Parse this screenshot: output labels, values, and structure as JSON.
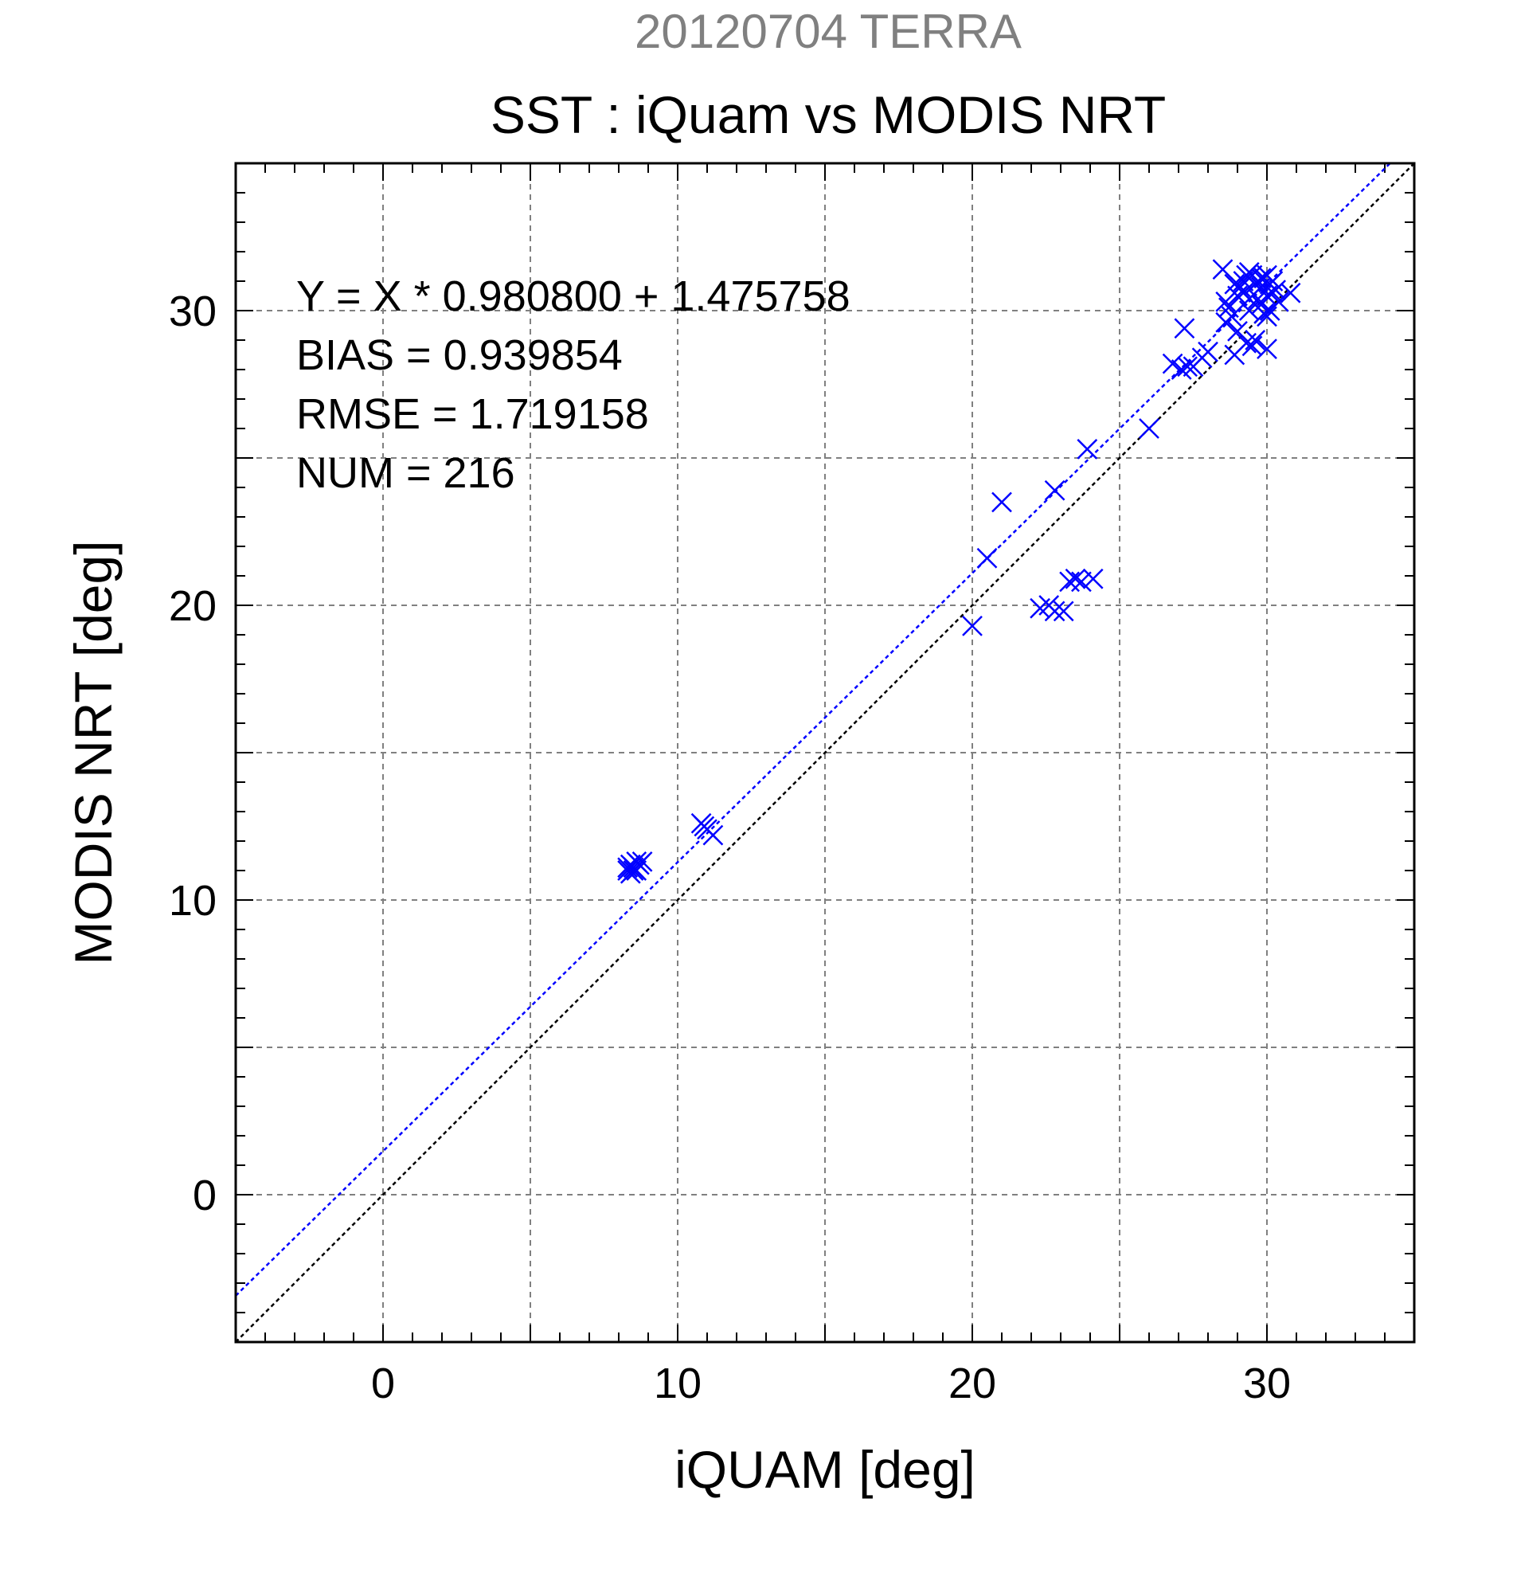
{
  "chart_data": {
    "type": "scatter",
    "suptitle": "20120704 TERRA",
    "title": "SST : iQuam vs MODIS NRT",
    "xlabel": "iQUAM [deg]",
    "ylabel": "MODIS NRT [deg]",
    "xlim": [
      -5,
      35
    ],
    "ylim": [
      -5,
      35
    ],
    "xticks": [
      0,
      10,
      20,
      30
    ],
    "yticks": [
      0,
      10,
      20,
      30
    ],
    "xtick_labels": [
      "0",
      "10",
      "20",
      "30"
    ],
    "ytick_labels": [
      "0",
      "10",
      "20",
      "30"
    ],
    "grid": true,
    "legend": "none",
    "stats": [
      "Y = X * 0.980800 + 1.475758",
      "BIAS = 0.939854",
      "RMSE = 1.719158",
      "NUM = 216"
    ],
    "fit_line": {
      "slope": 0.9808,
      "intercept": 1.475758,
      "color": "#0000ff"
    },
    "identity_line": {
      "slope": 1,
      "intercept": 0,
      "color": "#000000"
    },
    "marker": "x",
    "marker_color": "#0000ff",
    "series": [
      {
        "x": [
          8.3,
          8.4,
          8.5,
          8.6,
          8.7,
          8.4,
          8.5,
          8.3,
          8.6,
          8.8,
          10.8,
          10.9,
          11.0,
          11.2,
          20.0,
          20.5,
          21.0,
          22.8,
          23.9,
          26.0,
          22.3,
          22.6,
          22.8,
          23.1,
          23.3,
          23.5,
          23.7,
          24.1,
          26.8,
          27.1,
          27.3,
          27.5,
          27.8,
          28.0,
          27.2,
          28.5,
          28.6,
          28.7,
          28.8,
          28.9,
          29.0,
          29.1,
          29.2,
          29.3,
          29.4,
          29.5,
          29.6,
          29.7,
          29.8,
          29.9,
          30.0,
          30.1,
          30.2,
          30.3,
          28.6,
          29.0,
          29.4,
          29.8,
          30.2,
          29.5,
          29.9,
          30.0,
          30.4,
          30.8,
          28.9,
          29.3,
          29.6,
          30.0,
          29.7,
          30.1,
          29.2,
          29.8,
          30.0,
          29.4
        ],
        "y": [
          11.0,
          11.2,
          11.1,
          11.3,
          11.2,
          10.9,
          11.0,
          11.1,
          11.0,
          11.3,
          12.6,
          12.5,
          12.4,
          12.2,
          19.3,
          21.6,
          23.5,
          23.9,
          25.3,
          26.0,
          19.9,
          20.0,
          19.8,
          19.8,
          20.8,
          20.9,
          20.8,
          20.9,
          28.2,
          28.0,
          28.1,
          28.1,
          28.4,
          28.6,
          29.4,
          31.4,
          30.3,
          30.1,
          29.8,
          30.9,
          30.5,
          30.8,
          31.0,
          31.2,
          31.3,
          31.2,
          30.9,
          31.0,
          30.8,
          31.1,
          30.5,
          30.9,
          31.0,
          30.7,
          29.6,
          29.3,
          30.0,
          30.2,
          30.6,
          28.8,
          29.9,
          28.7,
          30.3,
          30.6,
          28.5,
          28.9,
          29.0,
          29.8,
          30.4,
          30.0,
          30.6,
          31.1,
          31.2,
          30.4
        ]
      }
    ]
  }
}
